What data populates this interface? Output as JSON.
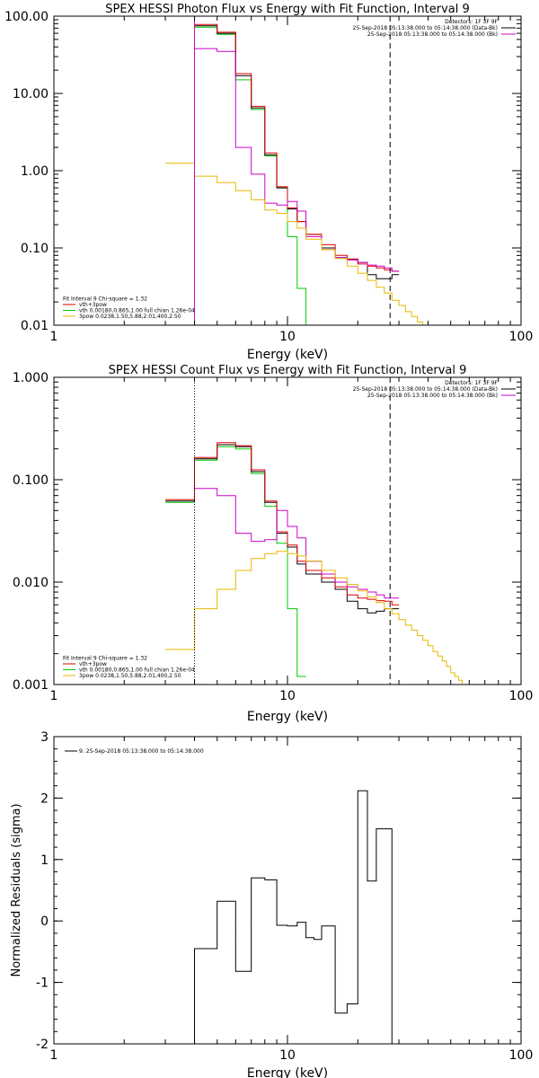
{
  "chart_data": [
    {
      "type": "line",
      "title": "SPEX HESSI Photon Flux vs Energy with Fit Function, Interval 9",
      "xlabel": "Energy (keV)",
      "ylabel": "",
      "xscale": "log",
      "yscale": "log",
      "xlim": [
        1,
        100
      ],
      "ylim": [
        0.01,
        100
      ],
      "xticks": [
        1,
        10,
        100
      ],
      "xtick_labels": [
        "1",
        "10",
        "100"
      ],
      "yticks": [
        0.01,
        0.1,
        1,
        10,
        100
      ],
      "ytick_labels": [
        "0.01",
        "0.10",
        "1.00",
        "10.00",
        "100.00"
      ],
      "grid": false,
      "legend_top": {
        "placement": "top-right",
        "lines": [
          {
            "text": "Detectors: 1F 3F 9F",
            "color": ""
          },
          {
            "text": "25-Sep-2018 05:13:38.000 to 05:14:38.000 (Data-Bk)",
            "color": "#000000"
          },
          {
            "text": "25-Sep-2018 05:13:38.000 to 05:14:38.000 (Bk)",
            "color": "#cc00cc"
          }
        ]
      },
      "legend_bottom": {
        "placement": "bottom-left",
        "lines": [
          {
            "text": "Fit Interval 9    Chi-square = 1.32",
            "color": ""
          },
          {
            "text": "vth+3pow",
            "color": "#e00000"
          },
          {
            "text": "vth 0.00180,0.865,1.00   full chian 1.26e-04",
            "color": "#00cc00"
          },
          {
            "text": "3pow 0.0238,1.50,5.88,2.01,400,2.50",
            "color": "#e8b800"
          }
        ]
      },
      "vlines": [
        {
          "x": 4.0,
          "style": "solid",
          "color": "#cc00cc"
        },
        {
          "x": 27.5,
          "style": "dashed",
          "color": "#000000"
        }
      ],
      "edges": [
        3,
        4,
        5,
        6,
        7,
        8,
        9,
        10,
        11,
        12,
        14,
        16,
        18,
        20,
        22,
        24,
        26,
        28,
        30,
        32,
        34,
        36,
        38,
        40,
        42,
        44
      ],
      "series": [
        {
          "color": "#00cc00",
          "values": [
            100,
            72,
            58,
            15,
            6.2,
            1.55,
            0.6,
            0.14,
            0.03,
            0.005
          ]
        },
        {
          "color": "#000000",
          "values": [
            null,
            75,
            60,
            17,
            6.5,
            1.6,
            0.6,
            0.32,
            0.22,
            0.15,
            0.1,
            0.075,
            0.07,
            0.065,
            0.045,
            0.04,
            0.04,
            0.045
          ]
        },
        {
          "color": "#e00000",
          "values": [
            null,
            78,
            62,
            18,
            6.8,
            1.7,
            0.62,
            0.33,
            0.22,
            0.15,
            0.11,
            0.08,
            0.072,
            0.062,
            0.058,
            0.055,
            0.052,
            0.05
          ]
        },
        {
          "color": "#cc00cc",
          "values": [
            null,
            38,
            35,
            2.0,
            0.9,
            0.38,
            0.36,
            0.4,
            0.3,
            0.14,
            0.095,
            0.075,
            0.07,
            0.065,
            0.06,
            0.058,
            0.055,
            0.05
          ]
        },
        {
          "color": "#e8b800",
          "values": [
            1.25,
            0.85,
            0.7,
            0.55,
            0.42,
            0.31,
            0.28,
            0.22,
            0.18,
            0.13,
            0.095,
            0.073,
            0.058,
            0.047,
            0.038,
            0.031,
            0.026,
            0.021,
            0.018,
            0.015,
            0.013,
            0.011,
            0.0095,
            0.0085,
            0.007
          ]
        }
      ]
    },
    {
      "type": "line",
      "title": "SPEX HESSI Count Flux vs Energy with Fit Function, Interval 9",
      "xlabel": "Energy (keV)",
      "ylabel": "",
      "xscale": "log",
      "yscale": "log",
      "xlim": [
        1,
        100
      ],
      "ylim": [
        0.001,
        1
      ],
      "xticks": [
        1,
        10,
        100
      ],
      "xtick_labels": [
        "1",
        "10",
        "100"
      ],
      "yticks": [
        0.001,
        0.01,
        0.1,
        1
      ],
      "ytick_labels": [
        "0.001",
        "0.010",
        "0.100",
        "1.000"
      ],
      "grid": false,
      "legend_top": {
        "placement": "top-right",
        "lines": [
          {
            "text": "Detectors: 1F 3F 9F",
            "color": ""
          },
          {
            "text": "25-Sep-2018 05:13:38.000 to 05:14:38.000 (Data-Bk)",
            "color": "#000000"
          },
          {
            "text": "25-Sep-2018 05:13:38.000 to 05:14:38.000 (Bk)",
            "color": "#cc00cc"
          }
        ]
      },
      "legend_bottom": {
        "placement": "bottom-left",
        "lines": [
          {
            "text": "Fit Interval 9    Chi-square = 1.32",
            "color": ""
          },
          {
            "text": "vth+3pow",
            "color": "#e00000"
          },
          {
            "text": "vth 0.00180,0.865,1.00   full chian 1.26e-04",
            "color": "#00cc00"
          },
          {
            "text": "3pow 0.0238,1.50,5.88,2.01,400,2.50",
            "color": "#e8b800"
          }
        ]
      },
      "vlines": [
        {
          "x": 4.0,
          "style": "dotted",
          "color": "#000000"
        },
        {
          "x": 27.5,
          "style": "dashed",
          "color": "#000000"
        }
      ],
      "edges": [
        3,
        4,
        5,
        6,
        7,
        8,
        9,
        10,
        11,
        12,
        14,
        16,
        18,
        20,
        22,
        24,
        26,
        28,
        30,
        32,
        34,
        36,
        38,
        40,
        42,
        44,
        46,
        48,
        50,
        52,
        54,
        56,
        58,
        60
      ],
      "series": [
        {
          "color": "#00cc00",
          "values": [
            0.06,
            0.155,
            0.21,
            0.2,
            0.115,
            0.055,
            0.024,
            0.0055,
            0.0012
          ]
        },
        {
          "color": "#000000",
          "values": [
            0.062,
            0.16,
            0.22,
            0.21,
            0.12,
            0.06,
            0.03,
            0.022,
            0.015,
            0.012,
            0.01,
            0.0085,
            0.0065,
            0.0055,
            0.005,
            0.0052,
            0.0055,
            0.0055
          ]
        },
        {
          "color": "#e00000",
          "values": [
            0.064,
            0.165,
            0.23,
            0.215,
            0.125,
            0.062,
            0.031,
            0.023,
            0.016,
            0.013,
            0.011,
            0.009,
            0.0075,
            0.007,
            0.0068,
            0.0066,
            0.0065,
            0.006
          ]
        },
        {
          "color": "#cc00cc",
          "values": [
            null,
            0.082,
            0.07,
            0.03,
            0.025,
            0.026,
            0.05,
            0.035,
            0.027,
            0.016,
            0.012,
            0.01,
            0.009,
            0.0085,
            0.008,
            0.0075,
            0.007,
            0.007
          ]
        },
        {
          "color": "#e8b800",
          "values": [
            0.0022,
            0.0055,
            0.0085,
            0.013,
            0.017,
            0.019,
            0.02,
            0.019,
            0.018,
            0.016,
            0.013,
            0.011,
            0.0095,
            0.0082,
            0.0072,
            0.0063,
            0.0055,
            0.0049,
            0.0043,
            0.0038,
            0.0034,
            0.003,
            0.0027,
            0.0024,
            0.0021,
            0.0019,
            0.0017,
            0.0015,
            0.0013,
            0.0012,
            0.0011,
            0.001,
            0.001
          ]
        }
      ]
    },
    {
      "type": "line",
      "title": "",
      "xlabel": "Energy (keV)",
      "ylabel": "Normalized Residuals (sigma)",
      "xscale": "log",
      "yscale": "linear",
      "xlim": [
        1,
        100
      ],
      "ylim": [
        -2,
        3
      ],
      "xticks": [
        1,
        10,
        100
      ],
      "xtick_labels": [
        "1",
        "10",
        "100"
      ],
      "yticks": [
        -2,
        -1,
        0,
        1,
        2,
        3
      ],
      "ytick_labels": [
        "-2",
        "-1",
        "0",
        "1",
        "2",
        "3"
      ],
      "grid": false,
      "legend_top": {
        "placement": "top-left",
        "lines": [
          {
            "text": "9: 25-Sep-2018 05:13:38.000 to 05:14:38.000",
            "color": "#000000"
          }
        ]
      },
      "vlines": [],
      "edges": [
        4,
        5,
        6,
        7,
        8,
        9,
        10,
        11,
        12,
        13,
        14,
        16,
        18,
        20,
        22,
        24,
        26,
        28
      ],
      "series": [
        {
          "color": "#000000",
          "baseline": -2,
          "values": [
            -0.45,
            0.32,
            -0.82,
            0.7,
            0.67,
            -0.07,
            -0.08,
            -0.02,
            -0.27,
            -0.3,
            -0.08,
            -1.5,
            -1.35,
            2.12,
            0.65,
            1.5,
            1.5
          ]
        }
      ]
    }
  ]
}
